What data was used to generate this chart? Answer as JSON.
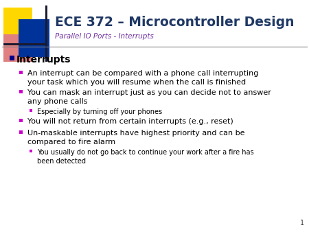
{
  "title": "ECE 372 – Microcontroller Design",
  "subtitle": "Parallel IO Ports - Interrupts",
  "background_color": "#ffffff",
  "title_color": "#1F3864",
  "subtitle_color": "#7030A0",
  "header_line_color": "#808080",
  "slide_number": "1",
  "bullet_color_l1": "#00008B",
  "bullet_color_l2": "#CC00CC",
  "bullet_color_l3": "#CC00CC",
  "content": [
    {
      "level": 1,
      "text": "Interrupts"
    },
    {
      "level": 2,
      "text": "An interrupt can be compared with a phone call interrupting\nyour task which you will resume when the call is finished"
    },
    {
      "level": 2,
      "text": "You can mask an interrupt just as you can decide not to answer\nany phone calls"
    },
    {
      "level": 3,
      "text": "Especially by turning off your phones"
    },
    {
      "level": 2,
      "text": "You will not return from certain interrupts (e.g., reset)"
    },
    {
      "level": 2,
      "text": "Un-maskable interrupts have highest priority and can be\ncompared to fire alarm"
    },
    {
      "level": 3,
      "text": "You usually do not go back to continue your work after a fire has\nbeen detected"
    }
  ]
}
